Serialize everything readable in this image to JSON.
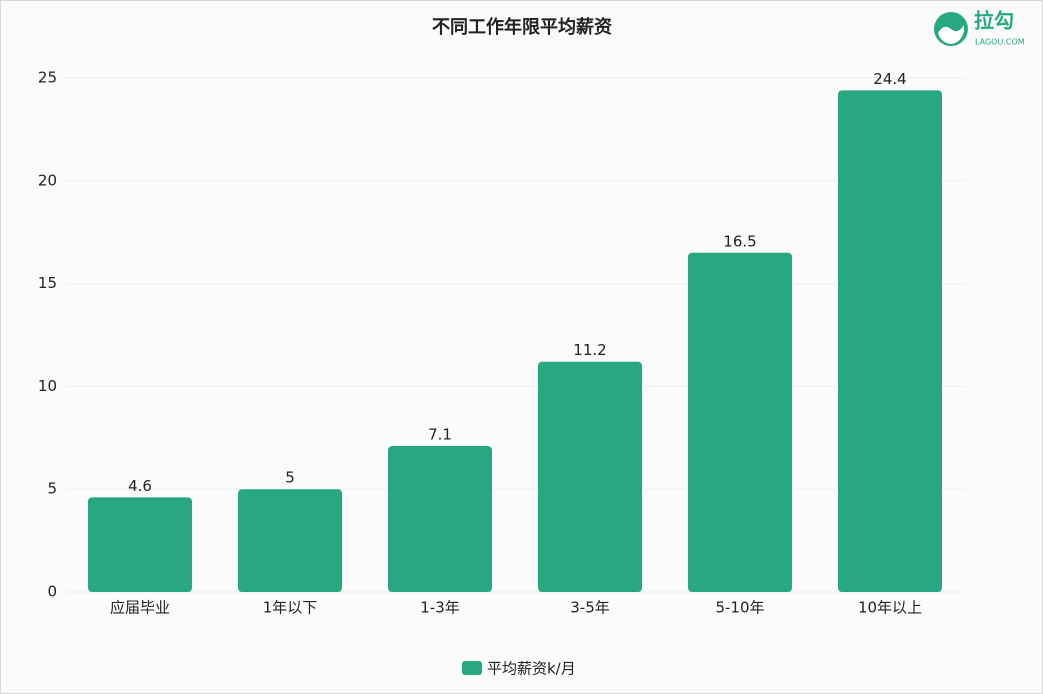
{
  "chart_data": {
    "type": "bar",
    "title": "不同工作年限平均薪资",
    "categories": [
      "应届毕业",
      "1年以下",
      "1-3年",
      "3-5年",
      "5-10年",
      "10年以上"
    ],
    "series": [
      {
        "name": "平均薪资k/月",
        "color": "#27a882",
        "values": [
          4.6,
          5,
          7.1,
          11.2,
          16.5,
          24.4
        ]
      }
    ],
    "ylim": [
      0,
      25
    ],
    "yticks": [
      0,
      5,
      10,
      15,
      20,
      25
    ],
    "grid": true,
    "legend": "bottom"
  },
  "logo": {
    "name": "拉勾",
    "site": "LAGOU.COM"
  }
}
